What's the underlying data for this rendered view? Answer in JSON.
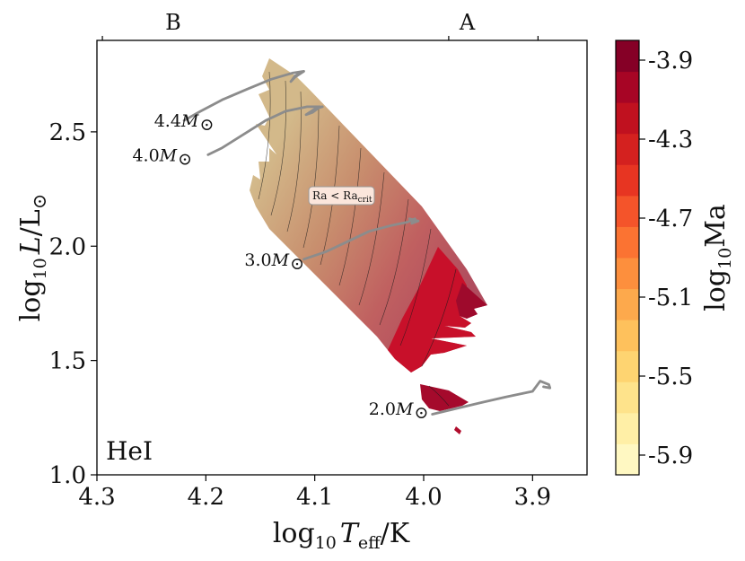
{
  "chart_data": {
    "type": "heatmap",
    "panel_label": "HeI",
    "xlabel_parts": {
      "pre": "log",
      "sub": "10",
      "var": "T",
      "varsub": "eff",
      "post": "/K"
    },
    "ylabel_parts": {
      "pre": "log",
      "sub": "10",
      "var": "L",
      "post": "/L",
      "sym": "⊙"
    },
    "xlim": [
      4.3,
      3.85
    ],
    "ylim": [
      1.0,
      2.9
    ],
    "xticks": [
      4.3,
      4.2,
      4.1,
      4.0,
      3.9
    ],
    "xtick_labels": [
      "4.3",
      "4.2",
      "4.1",
      "4.0",
      "3.9"
    ],
    "yticks": [
      1.0,
      1.5,
      2.0,
      2.5
    ],
    "ytick_labels": [
      "1.0",
      "1.5",
      "2.0",
      "2.5"
    ],
    "spectral_types": [
      {
        "label": "B",
        "x": 4.23
      },
      {
        "label": "A",
        "x": 3.96
      }
    ],
    "spectral_boundaries": [
      4.295,
      3.977,
      3.895
    ],
    "colorbar": {
      "label_pre": "log",
      "label_sub": "10",
      "label_post": "Ma",
      "range": [
        -6.0,
        -3.8
      ],
      "levels": 14,
      "ticks": [
        -3.9,
        -4.3,
        -4.7,
        -5.1,
        -5.5,
        -5.9
      ],
      "tick_labels": [
        "-3.9",
        "-4.3",
        "-4.7",
        "-5.1",
        "-5.5",
        "-5.9"
      ],
      "colors": [
        "#fff8c2",
        "#ffefa6",
        "#fee38b",
        "#fed471",
        "#fec15c",
        "#fda94c",
        "#fd8f3d",
        "#fb7332",
        "#f4542a",
        "#e73522",
        "#d4211f",
        "#c0111f",
        "#a70525",
        "#850026"
      ]
    },
    "annotation_box": {
      "text": "Ra < Ra",
      "sub": "crit",
      "x": 4.095,
      "y": 2.22
    },
    "tracks": [
      {
        "label": "4.4",
        "unit": "M",
        "sym": "⊙",
        "label_pos": [
          4.195,
          2.55
        ],
        "points": [
          [
            4.22,
            2.55
          ],
          [
            4.205,
            2.59
          ],
          [
            4.185,
            2.64
          ],
          [
            4.162,
            2.687
          ],
          [
            4.14,
            2.73
          ],
          [
            4.12,
            2.758
          ],
          [
            4.11,
            2.765
          ],
          [
            4.118,
            2.74
          ],
          [
            4.122,
            2.72
          ],
          [
            4.118,
            2.745
          ],
          [
            4.112,
            2.76
          ]
        ]
      },
      {
        "label": "4.0",
        "unit": "M",
        "sym": "⊙",
        "label_pos": [
          4.215,
          2.4
        ],
        "points": [
          [
            4.198,
            2.4
          ],
          [
            4.185,
            2.43
          ],
          [
            4.165,
            2.49
          ],
          [
            4.145,
            2.55
          ],
          [
            4.127,
            2.59
          ],
          [
            4.107,
            2.61
          ],
          [
            4.095,
            2.61
          ],
          [
            4.102,
            2.585
          ],
          [
            4.108,
            2.575
          ],
          [
            4.1,
            2.6
          ],
          [
            4.093,
            2.61
          ]
        ]
      },
      {
        "label": "3.0",
        "unit": "M",
        "sym": "⊙",
        "label_pos": [
          4.112,
          1.943
        ],
        "points": [
          [
            4.11,
            1.943
          ],
          [
            4.09,
            1.975
          ],
          [
            4.07,
            2.02
          ],
          [
            4.05,
            2.065
          ],
          [
            4.03,
            2.09
          ],
          [
            4.015,
            2.105
          ],
          [
            4.008,
            2.12
          ],
          [
            4.011,
            2.1
          ],
          [
            4.005,
            2.11
          ],
          [
            4.013,
            2.12
          ]
        ]
      },
      {
        "label": "2.0",
        "unit": "M",
        "sym": "⊙",
        "label_pos": [
          3.998,
          1.29
        ],
        "points": [
          [
            3.992,
            1.265
          ],
          [
            3.97,
            1.29
          ],
          [
            3.948,
            1.315
          ],
          [
            3.925,
            1.34
          ],
          [
            3.9,
            1.365
          ],
          [
            3.893,
            1.41
          ],
          [
            3.885,
            1.395
          ],
          [
            3.884,
            1.38
          ],
          [
            3.89,
            1.385
          ]
        ]
      }
    ]
  }
}
